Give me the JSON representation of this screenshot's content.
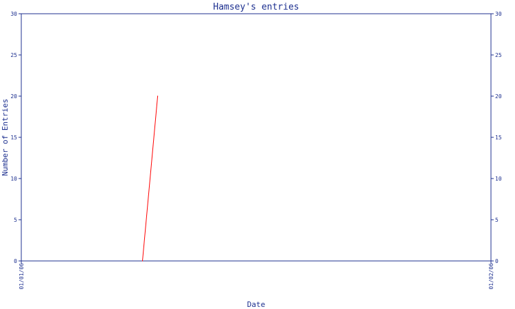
{
  "chart_data": {
    "type": "line",
    "title": "Hamsey's entries",
    "xlabel": "Date",
    "ylabel": "Number of Entries",
    "x_ticks": [
      "01/01/06",
      "01/02/06"
    ],
    "y_ticks": [
      0,
      5,
      10,
      15,
      20,
      25,
      30
    ],
    "ylim": [
      0,
      30
    ],
    "xlim": [
      "2006-01-01",
      "2006-02-01"
    ],
    "series": [
      {
        "color": "#ff0000",
        "points": [
          {
            "x": "2006-01-09",
            "y": 0
          },
          {
            "x": "2006-01-10",
            "y": 20
          }
        ]
      }
    ],
    "axis_color": "#1c2f8f",
    "grid": false,
    "right_axis": true
  }
}
